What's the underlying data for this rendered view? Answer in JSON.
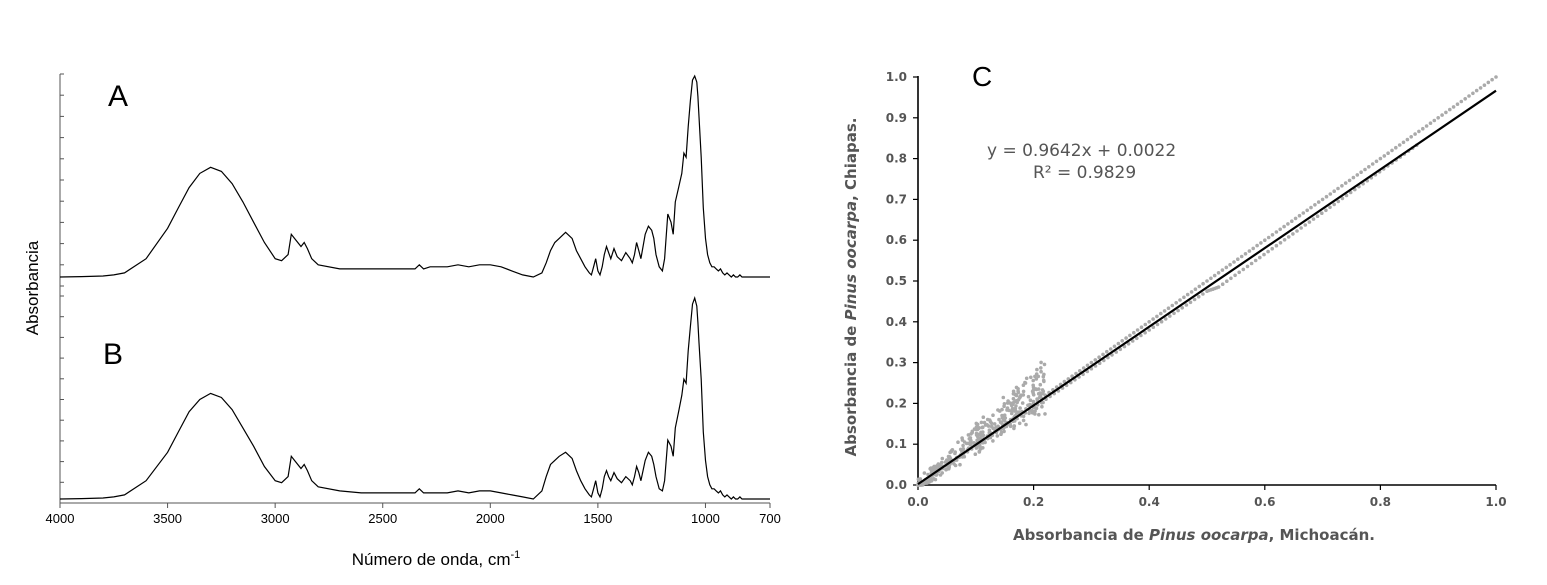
{
  "chart_data": [
    {
      "type": "line",
      "panels": [
        {
          "label": "A",
          "x": [
            4000,
            3900,
            3800,
            3750,
            3700,
            3600,
            3500,
            3450,
            3400,
            3350,
            3300,
            3250,
            3200,
            3150,
            3100,
            3050,
            3000,
            2970,
            2940,
            2925,
            2910,
            2880,
            2865,
            2850,
            2830,
            2800,
            2700,
            2600,
            2500,
            2400,
            2350,
            2330,
            2310,
            2280,
            2200,
            2150,
            2100,
            2050,
            2000,
            1950,
            1900,
            1850,
            1800,
            1760,
            1740,
            1720,
            1700,
            1680,
            1650,
            1620,
            1600,
            1580,
            1560,
            1540,
            1530,
            1520,
            1510,
            1500,
            1490,
            1480,
            1470,
            1460,
            1450,
            1440,
            1425,
            1410,
            1390,
            1370,
            1350,
            1340,
            1330,
            1320,
            1310,
            1300,
            1280,
            1265,
            1250,
            1240,
            1230,
            1215,
            1200,
            1190,
            1175,
            1160,
            1150,
            1140,
            1125,
            1110,
            1100,
            1090,
            1080,
            1070,
            1060,
            1050,
            1040,
            1035,
            1030,
            1020,
            1010,
            1000,
            990,
            980,
            970,
            960,
            950,
            940,
            930,
            920,
            910,
            900,
            890,
            880,
            870,
            860,
            850,
            840,
            830,
            820,
            810,
            800,
            790,
            780,
            770,
            760,
            750,
            740,
            730,
            720,
            710,
            700
          ],
          "y": [
            0.01,
            0.012,
            0.015,
            0.02,
            0.03,
            0.1,
            0.25,
            0.35,
            0.45,
            0.52,
            0.55,
            0.53,
            0.47,
            0.38,
            0.28,
            0.18,
            0.1,
            0.09,
            0.12,
            0.22,
            0.2,
            0.16,
            0.18,
            0.15,
            0.1,
            0.07,
            0.05,
            0.05,
            0.05,
            0.05,
            0.05,
            0.07,
            0.05,
            0.06,
            0.06,
            0.07,
            0.06,
            0.07,
            0.07,
            0.06,
            0.04,
            0.02,
            0.01,
            0.03,
            0.08,
            0.14,
            0.18,
            0.2,
            0.23,
            0.2,
            0.14,
            0.1,
            0.06,
            0.03,
            0.02,
            0.06,
            0.1,
            0.04,
            0.02,
            0.06,
            0.12,
            0.16,
            0.13,
            0.1,
            0.15,
            0.11,
            0.09,
            0.13,
            0.1,
            0.08,
            0.12,
            0.18,
            0.14,
            0.1,
            0.22,
            0.26,
            0.24,
            0.2,
            0.12,
            0.06,
            0.04,
            0.1,
            0.32,
            0.28,
            0.22,
            0.38,
            0.45,
            0.52,
            0.62,
            0.6,
            0.75,
            0.88,
            0.98,
            1.0,
            0.97,
            0.9,
            0.8,
            0.6,
            0.35,
            0.2,
            0.12,
            0.08,
            0.06,
            0.06,
            0.05,
            0.04,
            0.05,
            0.03,
            0.02,
            0.03,
            0.02,
            0.01,
            0.02,
            0.01,
            0.01,
            0.02,
            0.01,
            0.01,
            0.01,
            0.01,
            0.01,
            0.01,
            0.01,
            0.01,
            0.01,
            0.01,
            0.01,
            0.01,
            0.01,
            0.01
          ]
        },
        {
          "label": "B",
          "x": [
            4000,
            3900,
            3800,
            3750,
            3700,
            3600,
            3500,
            3450,
            3400,
            3350,
            3300,
            3250,
            3200,
            3150,
            3100,
            3050,
            3000,
            2970,
            2940,
            2925,
            2910,
            2880,
            2865,
            2850,
            2830,
            2800,
            2700,
            2600,
            2500,
            2400,
            2350,
            2330,
            2310,
            2280,
            2200,
            2150,
            2100,
            2050,
            2000,
            1950,
            1900,
            1850,
            1800,
            1760,
            1740,
            1720,
            1700,
            1680,
            1650,
            1620,
            1600,
            1580,
            1560,
            1540,
            1530,
            1520,
            1510,
            1500,
            1490,
            1480,
            1470,
            1460,
            1450,
            1440,
            1425,
            1410,
            1390,
            1370,
            1350,
            1340,
            1330,
            1320,
            1310,
            1300,
            1280,
            1265,
            1250,
            1240,
            1230,
            1215,
            1200,
            1190,
            1175,
            1160,
            1150,
            1140,
            1125,
            1110,
            1100,
            1090,
            1080,
            1070,
            1060,
            1050,
            1040,
            1035,
            1030,
            1020,
            1010,
            1000,
            990,
            980,
            970,
            960,
            950,
            940,
            930,
            920,
            910,
            900,
            890,
            880,
            870,
            860,
            850,
            840,
            830,
            820,
            810,
            800,
            790,
            780,
            770,
            760,
            750,
            740,
            730,
            720,
            710,
            700
          ],
          "y": [
            0.01,
            0.012,
            0.015,
            0.02,
            0.03,
            0.1,
            0.24,
            0.34,
            0.44,
            0.5,
            0.53,
            0.51,
            0.45,
            0.36,
            0.27,
            0.17,
            0.1,
            0.09,
            0.12,
            0.22,
            0.2,
            0.16,
            0.18,
            0.15,
            0.1,
            0.07,
            0.05,
            0.04,
            0.04,
            0.04,
            0.04,
            0.06,
            0.04,
            0.04,
            0.04,
            0.05,
            0.04,
            0.05,
            0.05,
            0.04,
            0.03,
            0.02,
            0.01,
            0.05,
            0.12,
            0.18,
            0.2,
            0.22,
            0.24,
            0.21,
            0.15,
            0.1,
            0.06,
            0.03,
            0.02,
            0.06,
            0.1,
            0.04,
            0.02,
            0.06,
            0.12,
            0.15,
            0.12,
            0.1,
            0.14,
            0.11,
            0.09,
            0.12,
            0.1,
            0.08,
            0.12,
            0.17,
            0.14,
            0.1,
            0.2,
            0.24,
            0.22,
            0.18,
            0.12,
            0.06,
            0.05,
            0.1,
            0.3,
            0.27,
            0.22,
            0.36,
            0.44,
            0.52,
            0.6,
            0.58,
            0.74,
            0.86,
            0.97,
            1.0,
            0.96,
            0.88,
            0.78,
            0.6,
            0.34,
            0.2,
            0.12,
            0.08,
            0.06,
            0.06,
            0.05,
            0.04,
            0.05,
            0.03,
            0.02,
            0.03,
            0.02,
            0.01,
            0.02,
            0.01,
            0.01,
            0.02,
            0.01,
            0.01,
            0.01,
            0.01,
            0.01,
            0.01,
            0.01,
            0.01,
            0.01,
            0.01,
            0.01,
            0.01,
            0.01,
            0.01
          ]
        }
      ],
      "xlim": [
        4000,
        700
      ],
      "ylim": [
        0,
        1
      ],
      "xticks": [
        "4000",
        "3500",
        "3000",
        "2500",
        "2000",
        "1500",
        "1000",
        "700"
      ],
      "xtick_values": [
        4000,
        3500,
        3000,
        2500,
        2000,
        1500,
        1000,
        700
      ],
      "xlabel": "Número de onda, cm",
      "xlabel_sup": "-1",
      "ylabel": "Absorbancia",
      "grid": false
    },
    {
      "type": "scatter",
      "panel_label": "C",
      "xlim": [
        0,
        1
      ],
      "ylim": [
        0,
        1
      ],
      "xticks": [
        "0.0",
        "0.2",
        "0.4",
        "0.6",
        "0.8",
        "1.0"
      ],
      "xtick_values": [
        0,
        0.2,
        0.4,
        0.6,
        0.8,
        1.0
      ],
      "yticks": [
        "0.0",
        "0.1",
        "0.2",
        "0.3",
        "0.4",
        "0.5",
        "0.6",
        "0.7",
        "0.8",
        "0.9",
        "1.0"
      ],
      "ytick_values": [
        0,
        0.1,
        0.2,
        0.3,
        0.4,
        0.5,
        0.6,
        0.7,
        0.8,
        0.9,
        1.0
      ],
      "xlabel_prefix": "Absorbancia de ",
      "xlabel_species": "Pinus oocarpa",
      "xlabel_suffix": ", Michoacán.",
      "ylabel_prefix": "Absorbancia de ",
      "ylabel_species": "Pinus oocarpa",
      "ylabel_suffix": ", Chiapas.",
      "equation": "y = 0.9642x + 0.0022",
      "r_squared": "R² = 0.9829",
      "trendline": {
        "slope": 0.9642,
        "intercept": 0.0022
      },
      "series_color": "#aaaaaa",
      "trend_color": "#000000",
      "upper_branch": {
        "x": [
          0.0,
          1.0
        ],
        "y": [
          0.0,
          1.0
        ]
      },
      "lower_branch": {
        "x": [
          0.0,
          0.5,
          0.52,
          0.87
        ],
        "y": [
          0.0,
          0.475,
          0.485,
          0.84
        ]
      },
      "cluster": {
        "x": [
          0.0,
          0.22
        ],
        "y": [
          0.0,
          0.24
        ]
      },
      "grid": false
    }
  ]
}
